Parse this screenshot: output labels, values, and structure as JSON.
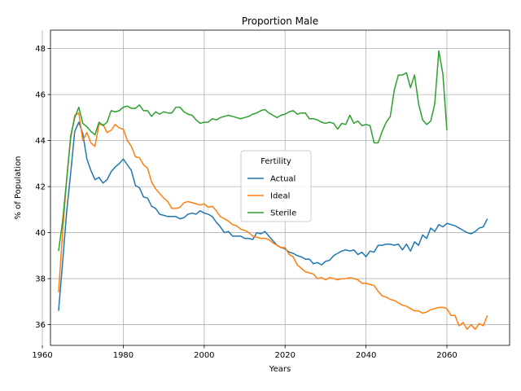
{
  "chart_data": {
    "type": "line",
    "title": "Proportion Male",
    "xlabel": "Years",
    "ylabel": "% of Population",
    "xlim": [
      1962,
      2075.5
    ],
    "ylim": [
      35.1,
      48.8
    ],
    "xticks": [
      1960,
      1980,
      2000,
      2020,
      2040,
      2060
    ],
    "yticks": [
      36,
      38,
      40,
      42,
      44,
      46,
      48
    ],
    "grid": true,
    "legend": {
      "title": "Fertility",
      "placement": "center"
    },
    "series": [
      {
        "name": "Actual",
        "color": "#1f77b4",
        "x": [
          1964,
          1965,
          1966,
          1967,
          1968,
          1969,
          1970,
          1971,
          1972,
          1973,
          1974,
          1975,
          1976,
          1977,
          1978,
          1979,
          1980,
          1981,
          1982,
          1983,
          1984,
          1985,
          1986,
          1987,
          1988,
          1989,
          1990,
          1991,
          1992,
          1993,
          1994,
          1995,
          1996,
          1997,
          1998,
          1999,
          2000,
          2001,
          2002,
          2003,
          2004,
          2005,
          2006,
          2007,
          2008,
          2009,
          2010,
          2011,
          2012,
          2013,
          2014,
          2015,
          2016,
          2017,
          2018,
          2019,
          2020,
          2021,
          2022,
          2023,
          2024,
          2025,
          2026,
          2027,
          2028,
          2029,
          2030,
          2031,
          2032,
          2033,
          2034,
          2035,
          2036,
          2037,
          2038,
          2039,
          2040,
          2041,
          2042,
          2043,
          2044,
          2045,
          2046,
          2047,
          2048,
          2049,
          2050,
          2051,
          2052,
          2053,
          2054,
          2055,
          2056,
          2057,
          2058,
          2059,
          2060,
          2061,
          2062,
          2063,
          2064,
          2065,
          2066,
          2067,
          2068,
          2069,
          2070
        ],
        "values": [
          36.6,
          38.7,
          40.9,
          42.6,
          44.4,
          44.8,
          44.3,
          43.2,
          42.7,
          42.3,
          42.4,
          42.15,
          42.3,
          42.65,
          42.85,
          43.0,
          43.2,
          42.95,
          42.7,
          42.05,
          41.95,
          41.55,
          41.5,
          41.15,
          41.05,
          40.8,
          40.75,
          40.7,
          40.7,
          40.7,
          40.6,
          40.65,
          40.8,
          40.85,
          40.8,
          40.95,
          40.85,
          40.8,
          40.7,
          40.45,
          40.25,
          40.0,
          40.05,
          39.85,
          39.85,
          39.85,
          39.75,
          39.75,
          39.7,
          40.0,
          39.95,
          40.05,
          39.85,
          39.65,
          39.45,
          39.35,
          39.3,
          39.15,
          39.1,
          39.0,
          38.95,
          38.85,
          38.85,
          38.65,
          38.7,
          38.6,
          38.75,
          38.8,
          39.0,
          39.1,
          39.2,
          39.25,
          39.2,
          39.25,
          39.05,
          39.15,
          38.95,
          39.2,
          39.15,
          39.45,
          39.45,
          39.5,
          39.5,
          39.45,
          39.5,
          39.25,
          39.5,
          39.2,
          39.6,
          39.45,
          39.9,
          39.75,
          40.2,
          40.05,
          40.35,
          40.25,
          40.4,
          40.35,
          40.3,
          40.2,
          40.1,
          40.0,
          39.95,
          40.05,
          40.2,
          40.25,
          40.6
        ]
      },
      {
        "name": "Ideal",
        "color": "#ff7f0e",
        "x": [
          1964,
          1965,
          1966,
          1967,
          1968,
          1969,
          1970,
          1971,
          1972,
          1973,
          1974,
          1975,
          1976,
          1977,
          1978,
          1979,
          1980,
          1981,
          1982,
          1983,
          1984,
          1985,
          1986,
          1987,
          1988,
          1989,
          1990,
          1991,
          1992,
          1993,
          1994,
          1995,
          1996,
          1997,
          1998,
          1999,
          2000,
          2001,
          2002,
          2003,
          2004,
          2005,
          2006,
          2007,
          2008,
          2009,
          2010,
          2011,
          2012,
          2013,
          2014,
          2015,
          2016,
          2017,
          2018,
          2019,
          2020,
          2021,
          2022,
          2023,
          2024,
          2025,
          2026,
          2027,
          2028,
          2029,
          2030,
          2031,
          2032,
          2033,
          2034,
          2035,
          2036,
          2037,
          2038,
          2039,
          2040,
          2041,
          2042,
          2043,
          2044,
          2045,
          2046,
          2047,
          2048,
          2049,
          2050,
          2051,
          2052,
          2053,
          2054,
          2055,
          2056,
          2057,
          2058,
          2059,
          2060,
          2061,
          2062,
          2063,
          2064,
          2065,
          2066,
          2067,
          2068,
          2069,
          2070
        ],
        "values": [
          37.4,
          40.0,
          42.3,
          44.1,
          45.1,
          45.2,
          44.0,
          44.35,
          43.9,
          43.75,
          44.7,
          44.7,
          44.35,
          44.45,
          44.7,
          44.55,
          44.5,
          44.0,
          43.75,
          43.3,
          43.25,
          42.95,
          42.8,
          42.2,
          41.9,
          41.7,
          41.5,
          41.35,
          41.05,
          41.05,
          41.1,
          41.3,
          41.35,
          41.3,
          41.25,
          41.2,
          41.25,
          41.1,
          41.15,
          40.95,
          40.7,
          40.6,
          40.5,
          40.35,
          40.3,
          40.15,
          40.1,
          40.0,
          39.85,
          39.8,
          39.75,
          39.75,
          39.7,
          39.55,
          39.45,
          39.35,
          39.35,
          39.05,
          38.95,
          38.6,
          38.45,
          38.3,
          38.25,
          38.2,
          38.0,
          38.05,
          37.95,
          38.05,
          38.0,
          37.95,
          38.0,
          38.0,
          38.05,
          38.0,
          37.95,
          37.8,
          37.8,
          37.75,
          37.7,
          37.45,
          37.25,
          37.2,
          37.1,
          37.05,
          36.95,
          36.85,
          36.8,
          36.7,
          36.6,
          36.6,
          36.5,
          36.55,
          36.65,
          36.7,
          36.75,
          36.75,
          36.7,
          36.4,
          36.4,
          35.95,
          36.1,
          35.8,
          36.0,
          35.8,
          36.05,
          35.95,
          36.4
        ]
      },
      {
        "name": "Sterile",
        "color": "#2ca02c",
        "x": [
          1964,
          1965,
          1966,
          1967,
          1968,
          1969,
          1970,
          1971,
          1972,
          1973,
          1974,
          1975,
          1976,
          1977,
          1978,
          1979,
          1980,
          1981,
          1982,
          1983,
          1984,
          1985,
          1986,
          1987,
          1988,
          1989,
          1990,
          1991,
          1992,
          1993,
          1994,
          1995,
          1996,
          1997,
          1998,
          1999,
          2000,
          2001,
          2002,
          2003,
          2004,
          2005,
          2006,
          2007,
          2008,
          2009,
          2010,
          2011,
          2012,
          2013,
          2014,
          2015,
          2016,
          2017,
          2018,
          2019,
          2020,
          2021,
          2022,
          2023,
          2024,
          2025,
          2026,
          2027,
          2028,
          2029,
          2030,
          2031,
          2032,
          2033,
          2034,
          2035,
          2036,
          2037,
          2038,
          2039,
          2040,
          2041,
          2042,
          2043,
          2044,
          2045,
          2046,
          2047,
          2048,
          2049,
          2050,
          2051,
          2052,
          2053,
          2054,
          2055,
          2056,
          2057,
          2058,
          2059,
          2060
        ],
        "values": [
          39.2,
          40.5,
          42.3,
          44.2,
          45.0,
          45.45,
          44.75,
          44.6,
          44.4,
          44.25,
          44.8,
          44.65,
          44.8,
          45.3,
          45.25,
          45.3,
          45.45,
          45.5,
          45.4,
          45.4,
          45.55,
          45.3,
          45.3,
          45.05,
          45.25,
          45.15,
          45.25,
          45.2,
          45.2,
          45.45,
          45.45,
          45.25,
          45.15,
          45.1,
          44.9,
          44.75,
          44.8,
          44.8,
          44.95,
          44.9,
          45.0,
          45.05,
          45.1,
          45.05,
          45.0,
          44.95,
          45.0,
          45.05,
          45.15,
          45.2,
          45.3,
          45.35,
          45.2,
          45.1,
          45.0,
          45.1,
          45.15,
          45.25,
          45.3,
          45.15,
          45.2,
          45.2,
          44.95,
          44.95,
          44.9,
          44.8,
          44.75,
          44.8,
          44.75,
          44.5,
          44.75,
          44.7,
          45.1,
          44.75,
          44.85,
          44.65,
          44.7,
          44.65,
          43.9,
          43.9,
          44.4,
          44.8,
          45.05,
          46.2,
          46.85,
          46.85,
          46.95,
          46.3,
          46.85,
          45.6,
          44.9,
          44.7,
          44.85,
          45.6,
          47.9,
          46.9,
          44.45
        ]
      }
    ]
  }
}
